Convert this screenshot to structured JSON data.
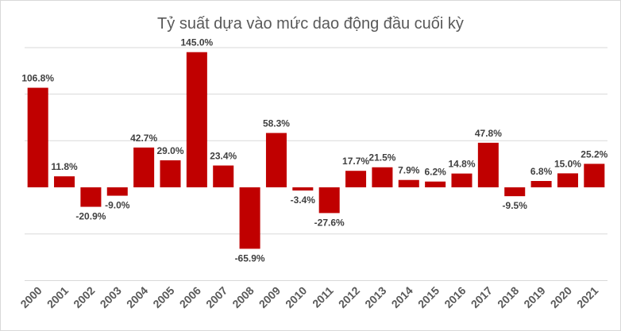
{
  "chart_data": {
    "type": "bar",
    "title": "Tỷ suất dựa vào mức dao động đầu cuối kỳ",
    "xlabel": "",
    "ylabel": "",
    "categories": [
      "2000",
      "2001",
      "2002",
      "2003",
      "2004",
      "2005",
      "2006",
      "2007",
      "2008",
      "2009",
      "2010",
      "2011",
      "2012",
      "2013",
      "2014",
      "2015",
      "2016",
      "2017",
      "2018",
      "2019",
      "2020",
      "2021"
    ],
    "values": [
      106.8,
      11.8,
      -20.9,
      -9.0,
      42.7,
      29.0,
      145.0,
      23.4,
      -65.9,
      58.3,
      -3.4,
      -27.6,
      17.7,
      21.5,
      7.9,
      6.2,
      14.8,
      47.8,
      -9.5,
      6.8,
      15.0,
      25.2
    ],
    "labels": [
      "106.8%",
      "11.8%",
      "-20.9%",
      "-9.0%",
      "42.7%",
      "29.0%",
      "145.0%",
      "23.4%",
      "-65.9%",
      "58.3%",
      "-3.4%",
      "-27.6%",
      "17.7%",
      "21.5%",
      "7.9%",
      "6.2%",
      "14.8%",
      "47.8%",
      "-9.5%",
      "6.8%",
      "15.0%",
      "25.2%"
    ],
    "ylim": [
      -100,
      150
    ],
    "grid": true,
    "legend": "none",
    "bar_color": "#c00000"
  }
}
